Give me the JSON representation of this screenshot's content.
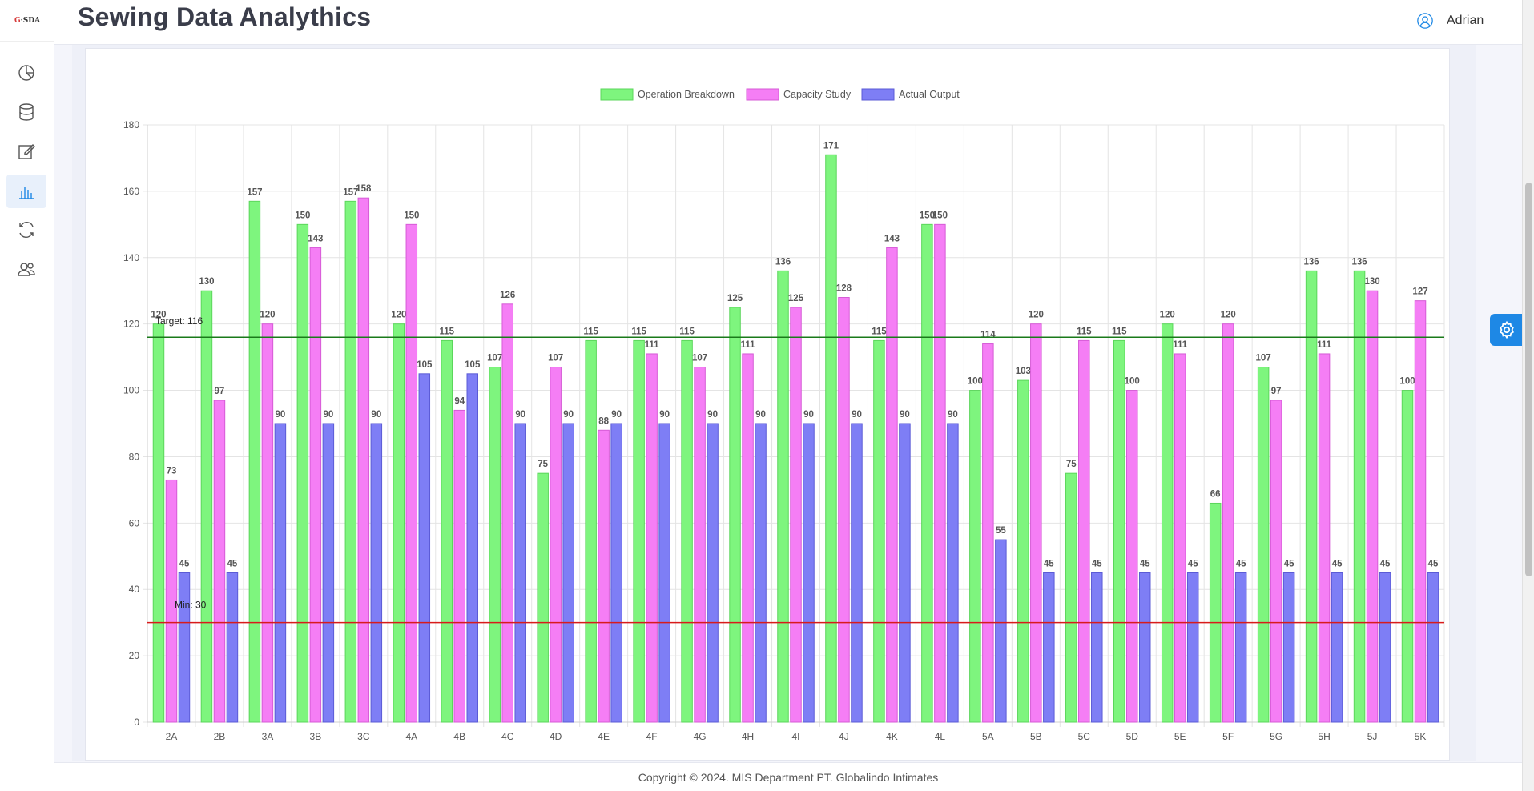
{
  "app": {
    "logo_text": "G-SDA",
    "logo_prefix": "G",
    "logo_suffix": "SDA",
    "title": "Sewing Data Analythics"
  },
  "sidebar": {
    "items": [
      {
        "name": "dashboard",
        "icon": "pie-chart-icon",
        "active": false
      },
      {
        "name": "database",
        "icon": "database-icon",
        "active": false
      },
      {
        "name": "edit",
        "icon": "edit-icon",
        "active": false
      },
      {
        "name": "analytics",
        "icon": "bar-chart-icon",
        "active": true
      },
      {
        "name": "sync",
        "icon": "refresh-icon",
        "active": false
      },
      {
        "name": "users",
        "icon": "users-icon",
        "active": false
      }
    ]
  },
  "user": {
    "name": "Adrian",
    "icon": "user-circle-icon"
  },
  "footer": {
    "text": "Copyright © 2024. MIS Department PT. Globalindo Intimates"
  },
  "colors": {
    "operation_breakdown": "#7ef57e",
    "capacity_study": "#f57ef5",
    "actual_output": "#7e7ef5",
    "target_line": "#1a7a1a",
    "min_line": "#d81b1b",
    "accent": "#1e88e5"
  },
  "chart_data": {
    "type": "bar",
    "categories": [
      "2A",
      "2B",
      "3A",
      "3B",
      "3C",
      "4A",
      "4B",
      "4C",
      "4D",
      "4E",
      "4F",
      "4G",
      "4H",
      "4I",
      "4J",
      "4K",
      "4L",
      "5A",
      "5B",
      "5C",
      "5D",
      "5E",
      "5F",
      "5G",
      "5H",
      "5J",
      "5K"
    ],
    "series": [
      {
        "name": "Operation Breakdown",
        "values": [
          120,
          130,
          157,
          150,
          157,
          120,
          115,
          107,
          75,
          115,
          115,
          115,
          125,
          136,
          171,
          115,
          150,
          100,
          103,
          75,
          115,
          120,
          66,
          107,
          136,
          136,
          100
        ]
      },
      {
        "name": "Capacity Study",
        "values": [
          73,
          97,
          120,
          143,
          158,
          150,
          94,
          126,
          107,
          88,
          111,
          107,
          111,
          125,
          128,
          143,
          150,
          114,
          120,
          115,
          100,
          111,
          120,
          97,
          111,
          130,
          127
        ]
      },
      {
        "name": "Actual Output",
        "values": [
          45,
          45,
          90,
          90,
          90,
          105,
          105,
          90,
          90,
          90,
          90,
          90,
          90,
          90,
          90,
          90,
          90,
          55,
          45,
          45,
          45,
          45,
          45,
          45,
          45,
          45,
          45
        ]
      }
    ],
    "ylim": [
      0,
      180
    ],
    "yticks": [
      0,
      20,
      40,
      60,
      80,
      100,
      120,
      140,
      160,
      180
    ],
    "grid": true,
    "legend": "top-center",
    "annotations": [
      {
        "label": "Target: 116",
        "value": 116
      },
      {
        "label": "Min: 30",
        "value": 30
      }
    ]
  }
}
